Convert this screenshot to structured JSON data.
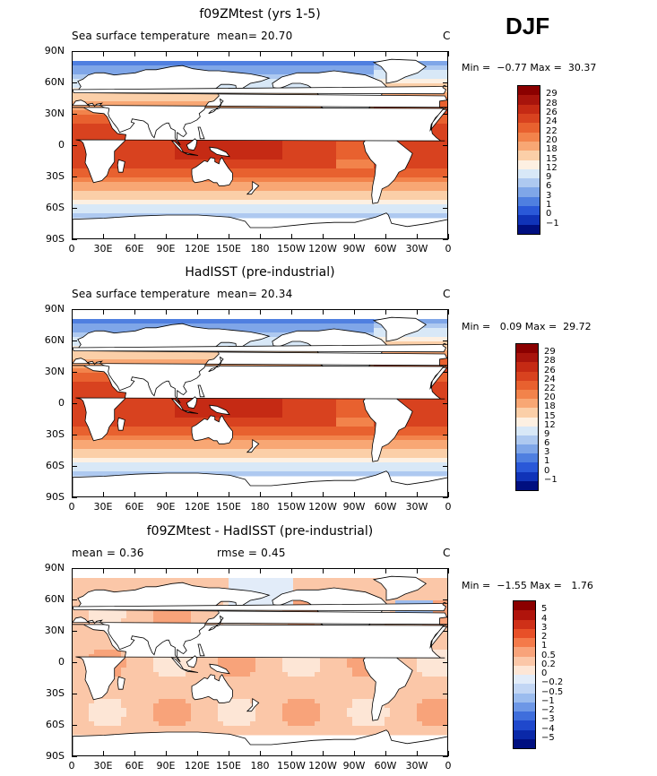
{
  "season": "DJF",
  "panels": [
    {
      "title": "f09ZMtest (yrs 1-5)",
      "variable": "Sea surface temperature",
      "stat1_label": "mean=",
      "stat1_value": "20.70",
      "stat2_label": "",
      "stat2_value": "",
      "units": "C",
      "minmax": "Min =  −0.77 Max =  30.37",
      "colorbar_labels": [
        "29",
        "28",
        "26",
        "24",
        "22",
        "20",
        "18",
        "15",
        "12",
        "9",
        "6",
        "3",
        "1",
        "0",
        "−1"
      ],
      "colorbar_colors": [
        "#8b0000",
        "#a8140c",
        "#c52a14",
        "#d8421f",
        "#e8612f",
        "#f2834b",
        "#f8a774",
        "#fbcfa8",
        "#fdf0e2",
        "#d8e8f7",
        "#aec9f0",
        "#7fa6e8",
        "#4f7fe0",
        "#2a58d8",
        "#1033b8",
        "#000f80"
      ]
    },
    {
      "title": "HadISST (pre-industrial)",
      "variable": "Sea surface temperature",
      "stat1_label": "mean=",
      "stat1_value": "20.34",
      "stat2_label": "",
      "stat2_value": "",
      "units": "C",
      "minmax": "Min =   0.09 Max =  29.72",
      "colorbar_labels": [
        "29",
        "28",
        "26",
        "24",
        "22",
        "20",
        "18",
        "15",
        "12",
        "9",
        "6",
        "3",
        "1",
        "0",
        "−1"
      ],
      "colorbar_colors": [
        "#8b0000",
        "#a8140c",
        "#c52a14",
        "#d8421f",
        "#e8612f",
        "#f2834b",
        "#f8a774",
        "#fbcfa8",
        "#fdf0e2",
        "#d8e8f7",
        "#aec9f0",
        "#7fa6e8",
        "#4f7fe0",
        "#2a58d8",
        "#1033b8",
        "#000f80"
      ]
    },
    {
      "title": "f09ZMtest - HadISST (pre-industrial)",
      "variable": "",
      "stat1_label": "mean =",
      "stat1_value": "0.36",
      "stat2_label": "rmse =",
      "stat2_value": "0.45",
      "units": "C",
      "minmax": "Min =  −1.55 Max =   1.76",
      "colorbar_labels": [
        "5",
        "4",
        "3",
        "2",
        "1",
        "0.5",
        "0.2",
        "0",
        "−0.2",
        "−0.5",
        "−1",
        "−2",
        "−3",
        "−4",
        "−5"
      ],
      "colorbar_colors": [
        "#8b0000",
        "#b0140c",
        "#cf3018",
        "#e85028",
        "#f47a4a",
        "#f8a37a",
        "#fbc7a8",
        "#fde6d6",
        "#e2ecf9",
        "#c2d6f4",
        "#9bbcee",
        "#6d97e6",
        "#3f6edc",
        "#1f48cc",
        "#0a28a8",
        "#000f80"
      ]
    }
  ],
  "lat_labels": [
    "90N",
    "60N",
    "30N",
    "0",
    "30S",
    "60S",
    "90S"
  ],
  "lon_labels": [
    "0",
    "30E",
    "60E",
    "90E",
    "120E",
    "150E",
    "180",
    "150W",
    "120W",
    "90W",
    "60W",
    "30W",
    "0"
  ]
}
